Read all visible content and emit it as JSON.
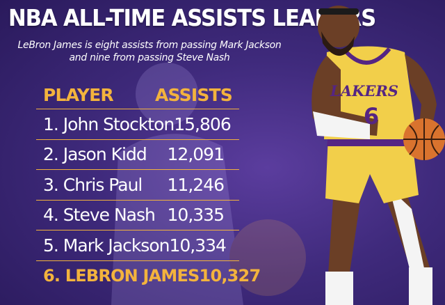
{
  "title": "NBA ALL-TIME ASSISTS LEADERS",
  "subtitle_lines": [
    "LeBron James is eight assists from passing Mark Jackson",
    "and nine from passing Steve Nash"
  ],
  "table": {
    "headers": {
      "player": "PLAYER",
      "assists": "ASSISTS"
    },
    "rows": [
      {
        "player": "1. John Stockton",
        "assists": "15,806"
      },
      {
        "player": "2. Jason Kidd",
        "assists": "12,091"
      },
      {
        "player": "3. Chris Paul",
        "assists": "11,246"
      },
      {
        "player": "4. Steve Nash",
        "assists": "10,335"
      },
      {
        "player": "5. Mark Jackson",
        "assists": "10,334"
      },
      {
        "player": "6. LEBRON JAMES",
        "assists": "10,327"
      }
    ],
    "highlight_row": 5
  },
  "jersey": {
    "team": "LAKERS",
    "number": "6"
  },
  "colors": {
    "background": "#3f2a7c",
    "accent_gold": "#f3b33d",
    "jersey_gold": "#f2cf4a",
    "lakers_purple": "#552583"
  },
  "icons": {
    "player_photo": "basketball-player-photo-icon",
    "ball": "basketball-icon"
  }
}
